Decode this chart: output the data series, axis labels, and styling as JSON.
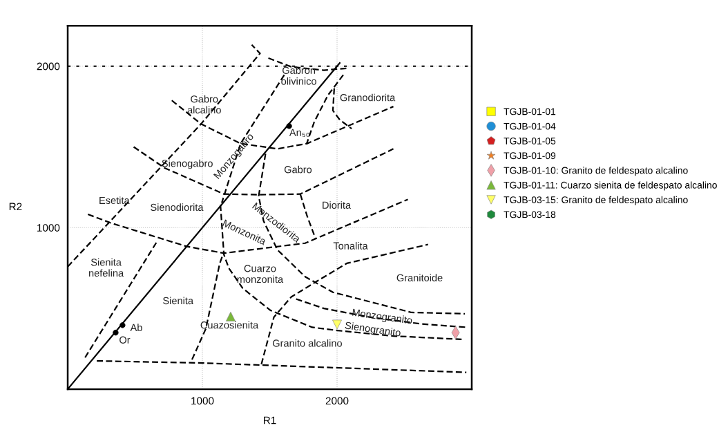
{
  "chart_data": {
    "type": "scatter",
    "xlabel": "R1",
    "ylabel": "R2",
    "xlim": [
      0,
      3000
    ],
    "ylim": [
      0,
      2250
    ],
    "xticks": [
      1000,
      2000
    ],
    "yticks": [
      1000,
      2000
    ],
    "grid": true,
    "legend": "right",
    "ref_lines": [
      {
        "axis": "y",
        "value": 2000,
        "color": "#000000",
        "line_style": "dotted"
      }
    ],
    "series": [
      {
        "type": "line",
        "color": "#000000",
        "line_style": "solid",
        "marker": "none",
        "x": [
          0,
          2020
        ],
        "values": [
          0,
          2020
        ]
      },
      {
        "type": "line",
        "color": "#000000",
        "line_style": "dashed",
        "marker": "none",
        "x": [
          216,
          1000,
          2960
        ],
        "values": [
          175,
          162,
          104
        ]
      },
      {
        "type": "line",
        "color": "#000000",
        "line_style": "dashed",
        "marker": "none",
        "x": [
          0,
          990,
          1428,
          1366
        ],
        "values": [
          758,
          1642,
          2079,
          2133
        ]
      },
      {
        "type": "line",
        "color": "#000000",
        "line_style": "dashed",
        "marker": "none",
        "x": [
          129,
          665
        ],
        "values": [
          196,
          917
        ]
      },
      {
        "type": "line",
        "color": "#000000",
        "line_style": "dashed",
        "marker": "none",
        "x": [
          150,
          320,
          887,
          1160,
          1763,
          2526
        ],
        "values": [
          1083,
          1029,
          883,
          842,
          904,
          1175
        ]
      },
      {
        "type": "line",
        "color": "#000000",
        "line_style": "dashed",
        "marker": "none",
        "x": [
          490,
          717,
          1160,
          1418,
          1727,
          2418
        ],
        "values": [
          1500,
          1371,
          1208,
          1204,
          1208,
          1488
        ]
      },
      {
        "type": "line",
        "color": "#000000",
        "line_style": "dashed",
        "marker": "none",
        "x": [
          773,
          990,
          1284,
          1557,
          1778,
          2418
        ],
        "values": [
          1788,
          1642,
          1521,
          1488,
          1521,
          1750
        ]
      },
      {
        "type": "line",
        "color": "#000000",
        "line_style": "dashed",
        "marker": "none",
        "x": [
          1608,
          1284,
          1144
        ],
        "values": [
          1946,
          1521,
          1154
        ]
      },
      {
        "type": "line",
        "color": "#000000",
        "line_style": "dashed",
        "marker": "none",
        "x": [
          1490,
          1660,
          1902,
          2088
        ],
        "values": [
          2050,
          1996,
          1975,
          1988
        ]
      },
      {
        "type": "line",
        "color": "#000000",
        "line_style": "dashed",
        "marker": "none",
        "x": [
          2046,
          1933,
          1830,
          1773
        ],
        "values": [
          1946,
          1821,
          1654,
          1517
        ]
      },
      {
        "type": "line",
        "color": "#000000",
        "line_style": "dashed",
        "marker": "none",
        "x": [
          1979,
          1969,
          2021,
          2108
        ],
        "values": [
          1863,
          1725,
          1667,
          1613
        ]
      },
      {
        "type": "line",
        "color": "#000000",
        "line_style": "dashed",
        "marker": "none",
        "x": [
          1469,
          1418,
          1454,
          1557,
          1763,
          1969,
          2552,
          2949
        ],
        "values": [
          1458,
          1196,
          1042,
          863,
          696,
          600,
          475,
          467
        ]
      },
      {
        "type": "line",
        "color": "#000000",
        "line_style": "dashed",
        "marker": "none",
        "x": [
          1134,
          1160,
          1196,
          1299,
          1505,
          1815,
          2005,
          2418,
          2933
        ],
        "values": [
          1142,
          833,
          750,
          625,
          488,
          383,
          363,
          329,
          308
        ]
      },
      {
        "type": "line",
        "color": "#000000",
        "line_style": "dashed",
        "marker": "none",
        "x": [
          1696,
          1902,
          2242,
          2624,
          2964
        ],
        "values": [
          558,
          500,
          446,
          404,
          383
        ]
      },
      {
        "type": "line",
        "color": "#000000",
        "line_style": "dashed",
        "marker": "none",
        "x": [
          1438,
          1531,
          1660,
          1840,
          2072,
          2676
        ],
        "values": [
          154,
          446,
          571,
          663,
          779,
          896
        ]
      },
      {
        "type": "line",
        "color": "#000000",
        "line_style": "dashed",
        "marker": "none",
        "x": [
          923,
          1026,
          1129,
          1160
        ],
        "values": [
          183,
          375,
          779,
          850
        ]
      },
      {
        "type": "line",
        "color": "#000000",
        "line_style": "dashed",
        "marker": "none",
        "x": [
          1727,
          1778,
          1840
        ],
        "values": [
          1208,
          1071,
          933
        ]
      },
      {
        "type": "scatter",
        "color": "#000000",
        "marker": "circle",
        "x": [
          1644,
          407,
          356
        ],
        "values": [
          1629,
          396,
          350
        ]
      },
      {
        "name": "TGJB-01-01",
        "color": "#ffff00",
        "marker": "square"
      },
      {
        "name": "TGJB-01-04",
        "color": "#1f8fd6",
        "marker": "circle"
      },
      {
        "name": "TGJB-01-05",
        "color": "#d42020",
        "marker": "pentagon"
      },
      {
        "name": "TGJB-01-09",
        "color": "#f07f22",
        "marker": "star"
      },
      {
        "name": "TGJB-01-10: Granito de feldespato alcalino",
        "color": "#f0a0a8",
        "marker": "diamond",
        "x": [
          2880
        ],
        "values": [
          350
        ]
      },
      {
        "name": "TGJB-01-11: Cuarzo sienita de feldespato alcalino",
        "color": "#7ab83a",
        "marker": "triangle",
        "x": [
          1210
        ],
        "values": [
          450
        ]
      },
      {
        "name": "TGJB-03-15: Granito de feldespato alcalino",
        "color": "#ffff66",
        "marker": "triangle_down",
        "x": [
          2000
        ],
        "values": [
          400
        ]
      },
      {
        "name": "TGJB-03-18",
        "color": "#1e8a3c",
        "marker": "hexagon"
      }
    ],
    "annotations": [
      "Esetita",
      "Sienita\nnefelina",
      "Gabro\nalcalino",
      "Gabron\nolivinico",
      "Granodiorita",
      "An₅₀",
      "Sienogabro",
      "Gabro",
      "Monzogabro",
      "Sienodiorita",
      "Diorita",
      "Monzodiorita",
      "Monzonita",
      "Tonalita",
      "Cuarzo\nmonzonita",
      "Granitoide",
      "Sienita",
      "Cuazosienita",
      "Monzogranito",
      "Sienogranito",
      "Granito alcalino",
      "Ab",
      "Or"
    ]
  }
}
